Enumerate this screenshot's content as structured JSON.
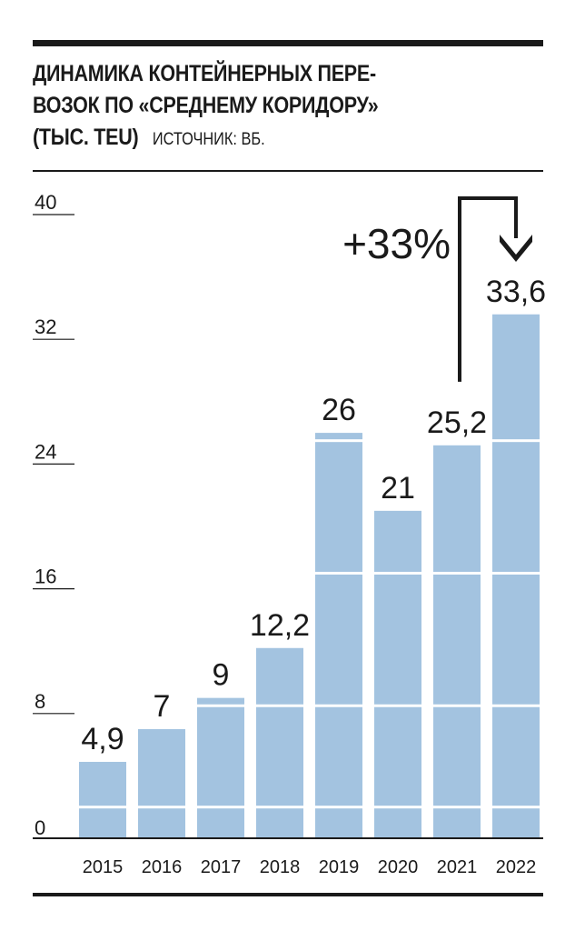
{
  "header": {
    "title_line1": "ДИНАМИКА КОНТЕЙНЕРНЫХ ПЕРЕ-",
    "title_line2": "ВОЗОК ПО «СРЕДНЕМУ КОРИДОРУ»",
    "title_line3": "(ТЫС. TEU)",
    "source": "ИСТОЧНИК: ВБ."
  },
  "colors": {
    "bar": "#a3c3e0",
    "ink": "#1a1a1a",
    "background": "#ffffff"
  },
  "chart_data": {
    "type": "bar",
    "title": "ДИНАМИКА КОНТЕЙНЕРНЫХ ПЕРЕВОЗОК ПО «СРЕДНЕМУ КОРИДОРУ» (ТЫС. TEU)",
    "categories": [
      "2015",
      "2016",
      "2017",
      "2018",
      "2019",
      "2020",
      "2021",
      "2022"
    ],
    "values": [
      4.9,
      7,
      9,
      12.2,
      26,
      21,
      25.2,
      33.6
    ],
    "value_labels": [
      "4,9",
      "7",
      "9",
      "12,2",
      "26",
      "21",
      "25,2",
      "33,6"
    ],
    "ylim": [
      0,
      40
    ],
    "yticks": [
      0,
      8,
      16,
      24,
      32,
      40
    ],
    "grid": false,
    "xlabel": "",
    "ylabel": "",
    "annotation": {
      "text": "+33%",
      "from": "2021",
      "to": "2022"
    }
  }
}
